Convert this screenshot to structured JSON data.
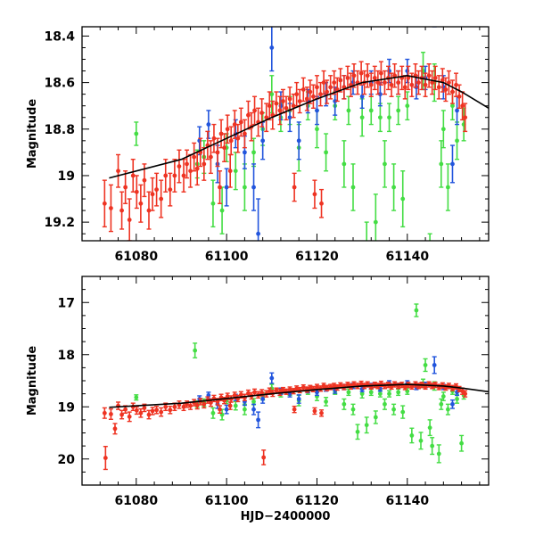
{
  "chart_data": [
    {
      "type": "scatter",
      "panel": "top",
      "title": "",
      "xlabel": "",
      "ylabel": "Magnitude",
      "xlim": [
        61068,
        61158
      ],
      "ylim": [
        19.28,
        18.36
      ],
      "y_inverted": true,
      "xticks": [
        61080,
        61100,
        61120,
        61140
      ],
      "xtick_labels": [
        "61080",
        "61100",
        "61120",
        "61140"
      ],
      "yticks": [
        18.4,
        18.6,
        18.8,
        19,
        19.2
      ],
      "ytick_labels": [
        "18.4",
        "18.6",
        "18.8",
        "19",
        "19.2"
      ],
      "grid": false,
      "legend": "none",
      "colors": {
        "series_green": "#44dd44",
        "series_blue": "#2255dd",
        "series_red": "#ee3322",
        "model_curve": "#000000"
      },
      "model_curve": {
        "name": "model",
        "points": [
          [
            61074,
            19.01
          ],
          [
            61090,
            18.93
          ],
          [
            61100,
            18.84
          ],
          [
            61110,
            18.75
          ],
          [
            61120,
            18.67
          ],
          [
            61130,
            18.6
          ],
          [
            61140,
            18.57
          ],
          [
            61148,
            18.6
          ],
          [
            61152,
            18.64
          ],
          [
            61158,
            18.71
          ]
        ]
      }
    },
    {
      "type": "scatter",
      "panel": "bottom",
      "title": "",
      "xlabel": "HJD−2400000",
      "ylabel": "Magnitude",
      "xlim": [
        61068,
        61158
      ],
      "ylim": [
        20.5,
        16.5
      ],
      "y_inverted": true,
      "xticks": [
        61080,
        61100,
        61120,
        61140
      ],
      "xtick_labels": [
        "61080",
        "61100",
        "61120",
        "61140"
      ],
      "yticks": [
        17,
        18,
        19,
        20
      ],
      "ytick_labels": [
        "17",
        "18",
        "19",
        "20"
      ],
      "grid": false,
      "legend": "none",
      "colors": {
        "series_green": "#44dd44",
        "series_blue": "#2255dd",
        "series_red": "#ee3322",
        "model_curve": "#000000"
      },
      "model_curve": {
        "name": "model",
        "points": [
          [
            61074,
            19.01
          ],
          [
            61090,
            18.93
          ],
          [
            61100,
            18.84
          ],
          [
            61110,
            18.75
          ],
          [
            61120,
            18.67
          ],
          [
            61130,
            18.6
          ],
          [
            61140,
            18.57
          ],
          [
            61148,
            18.6
          ],
          [
            61152,
            18.64
          ],
          [
            61158,
            18.71
          ]
        ]
      }
    }
  ],
  "series": [
    {
      "name": "red",
      "color": "#ee3322",
      "points": [
        [
          61073.0,
          19.12,
          0.1
        ],
        [
          61073.2,
          19.98,
          0.22
        ],
        [
          61074.4,
          19.14,
          0.1
        ],
        [
          61075.3,
          19.42,
          0.1
        ],
        [
          61076.0,
          18.98,
          0.07
        ],
        [
          61076.8,
          19.15,
          0.08
        ],
        [
          61077.6,
          19.05,
          0.07
        ],
        [
          61078.5,
          19.19,
          0.09
        ],
        [
          61079.3,
          19.0,
          0.07
        ],
        [
          61080.1,
          19.07,
          0.07
        ],
        [
          61081.0,
          19.12,
          0.08
        ],
        [
          61081.8,
          19.02,
          0.07
        ],
        [
          61082.8,
          19.15,
          0.08
        ],
        [
          61083.6,
          19.08,
          0.07
        ],
        [
          61084.5,
          19.06,
          0.07
        ],
        [
          61085.5,
          19.1,
          0.08
        ],
        [
          61086.5,
          19.0,
          0.07
        ],
        [
          61087.5,
          19.06,
          0.07
        ],
        [
          61088.5,
          19.0,
          0.07
        ],
        [
          61089.5,
          18.96,
          0.07
        ],
        [
          61090.5,
          19.0,
          0.07
        ],
        [
          61091.2,
          18.95,
          0.06
        ],
        [
          61092.0,
          18.98,
          0.07
        ],
        [
          61092.8,
          18.92,
          0.06
        ],
        [
          61093.5,
          18.97,
          0.07
        ],
        [
          61094.2,
          18.9,
          0.06
        ],
        [
          61095.0,
          18.95,
          0.07
        ],
        [
          61095.8,
          18.87,
          0.06
        ],
        [
          61096.5,
          18.92,
          0.07
        ],
        [
          61097.2,
          18.84,
          0.06
        ],
        [
          61098.0,
          18.9,
          0.06
        ],
        [
          61098.8,
          18.82,
          0.06
        ],
        [
          61099.5,
          18.88,
          0.06
        ],
        [
          61100.2,
          18.8,
          0.06
        ],
        [
          61101.0,
          18.85,
          0.06
        ],
        [
          61101.8,
          18.78,
          0.06
        ],
        [
          61102.5,
          18.84,
          0.06
        ],
        [
          61103.2,
          18.77,
          0.06
        ],
        [
          61104.0,
          18.82,
          0.06
        ],
        [
          61104.8,
          18.74,
          0.06
        ],
        [
          61105.5,
          18.79,
          0.06
        ],
        [
          61106.2,
          18.72,
          0.06
        ],
        [
          61107.0,
          18.77,
          0.06
        ],
        [
          61107.8,
          18.73,
          0.06
        ],
        [
          61108.2,
          19.97,
          0.14
        ],
        [
          61108.8,
          18.75,
          0.06
        ],
        [
          61109.5,
          18.7,
          0.06
        ],
        [
          61110.2,
          18.74,
          0.06
        ],
        [
          61111.0,
          18.69,
          0.05
        ],
        [
          61111.8,
          18.72,
          0.06
        ],
        [
          61112.5,
          18.68,
          0.05
        ],
        [
          61113.2,
          18.71,
          0.05
        ],
        [
          61114.0,
          18.67,
          0.05
        ],
        [
          61114.8,
          18.7,
          0.05
        ],
        [
          61115.5,
          18.65,
          0.05
        ],
        [
          61116.2,
          18.68,
          0.05
        ],
        [
          61117.0,
          18.63,
          0.05
        ],
        [
          61117.8,
          18.67,
          0.05
        ],
        [
          61118.5,
          18.64,
          0.05
        ],
        [
          61119.2,
          18.66,
          0.05
        ],
        [
          61120.0,
          18.62,
          0.05
        ],
        [
          61120.8,
          18.65,
          0.05
        ],
        [
          61121.5,
          18.6,
          0.05
        ],
        [
          61122.2,
          18.64,
          0.05
        ],
        [
          61123.0,
          18.62,
          0.05
        ],
        [
          61123.8,
          18.6,
          0.05
        ],
        [
          61124.5,
          18.63,
          0.05
        ],
        [
          61125.2,
          18.59,
          0.05
        ],
        [
          61126.0,
          18.62,
          0.05
        ],
        [
          61126.8,
          18.58,
          0.05
        ],
        [
          61127.5,
          18.61,
          0.05
        ],
        [
          61128.2,
          18.57,
          0.05
        ],
        [
          61129.0,
          18.6,
          0.05
        ],
        [
          61129.8,
          18.56,
          0.05
        ],
        [
          61130.5,
          18.6,
          0.05
        ],
        [
          61131.2,
          18.57,
          0.05
        ],
        [
          61132.0,
          18.61,
          0.05
        ],
        [
          61132.8,
          18.58,
          0.05
        ],
        [
          61133.5,
          18.6,
          0.05
        ],
        [
          61134.2,
          18.56,
          0.05
        ],
        [
          61135.0,
          18.6,
          0.05
        ],
        [
          61135.8,
          18.58,
          0.05
        ],
        [
          61136.5,
          18.61,
          0.05
        ],
        [
          61137.2,
          18.57,
          0.05
        ],
        [
          61138.0,
          18.6,
          0.05
        ],
        [
          61138.8,
          18.58,
          0.05
        ],
        [
          61139.5,
          18.62,
          0.05
        ],
        [
          61140.2,
          18.58,
          0.05
        ],
        [
          61141.0,
          18.61,
          0.05
        ],
        [
          61141.8,
          18.57,
          0.05
        ],
        [
          61142.5,
          18.6,
          0.05
        ],
        [
          61143.2,
          18.58,
          0.05
        ],
        [
          61144.0,
          18.61,
          0.05
        ],
        [
          61144.8,
          18.57,
          0.05
        ],
        [
          61145.5,
          18.6,
          0.05
        ],
        [
          61146.2,
          18.58,
          0.05
        ],
        [
          61147.0,
          18.62,
          0.05
        ],
        [
          61147.8,
          18.59,
          0.05
        ],
        [
          61148.5,
          18.63,
          0.05
        ],
        [
          61149.2,
          18.6,
          0.05
        ],
        [
          61150.0,
          18.64,
          0.05
        ],
        [
          61150.8,
          18.61,
          0.05
        ],
        [
          61151.5,
          18.66,
          0.05
        ],
        [
          61152.2,
          18.7,
          0.06
        ],
        [
          61152.8,
          18.75,
          0.06
        ],
        [
          61119.5,
          19.08,
          0.06
        ],
        [
          61121.0,
          19.12,
          0.06
        ],
        [
          61115.0,
          19.05,
          0.06
        ],
        [
          61098.5,
          19.05,
          0.07
        ],
        [
          61100.8,
          18.98,
          0.07
        ]
      ]
    },
    {
      "name": "green",
      "color": "#44dd44",
      "points": [
        [
          61080.0,
          18.82,
          0.05
        ],
        [
          61093.0,
          17.92,
          0.14
        ],
        [
          61093.5,
          18.95,
          0.06
        ],
        [
          61095.0,
          18.92,
          0.07
        ],
        [
          61097.0,
          19.12,
          0.1
        ],
        [
          61099.0,
          19.15,
          0.1
        ],
        [
          61100.0,
          18.88,
          0.06
        ],
        [
          61102.0,
          18.98,
          0.08
        ],
        [
          61104.0,
          19.05,
          0.1
        ],
        [
          61106.0,
          18.9,
          0.06
        ],
        [
          61108.0,
          18.8,
          0.07
        ],
        [
          61110.0,
          18.65,
          0.08
        ],
        [
          61112.0,
          18.75,
          0.06
        ],
        [
          61114.0,
          18.72,
          0.06
        ],
        [
          61116.0,
          18.88,
          0.1
        ],
        [
          61118.0,
          18.7,
          0.06
        ],
        [
          61120.0,
          18.8,
          0.08
        ],
        [
          61122.0,
          18.9,
          0.08
        ],
        [
          61124.0,
          18.7,
          0.06
        ],
        [
          61126.0,
          18.95,
          0.1
        ],
        [
          61127.0,
          18.72,
          0.06
        ],
        [
          61128.0,
          19.05,
          0.1
        ],
        [
          61129.0,
          19.48,
          0.14
        ],
        [
          61130.0,
          18.75,
          0.08
        ],
        [
          61131.0,
          19.35,
          0.15
        ],
        [
          61132.0,
          18.72,
          0.06
        ],
        [
          61133.0,
          19.2,
          0.12
        ],
        [
          61134.0,
          18.75,
          0.06
        ],
        [
          61135.0,
          18.95,
          0.1
        ],
        [
          61136.0,
          18.75,
          0.06
        ],
        [
          61137.0,
          19.05,
          0.1
        ],
        [
          61138.0,
          18.72,
          0.06
        ],
        [
          61139.0,
          19.1,
          0.12
        ],
        [
          61140.0,
          18.7,
          0.06
        ],
        [
          61141.0,
          19.55,
          0.14
        ],
        [
          61142.0,
          17.15,
          0.12
        ],
        [
          61143.0,
          19.65,
          0.16
        ],
        [
          61143.5,
          18.55,
          0.08
        ],
        [
          61144.0,
          18.2,
          0.12
        ],
        [
          61145.0,
          19.4,
          0.15
        ],
        [
          61145.5,
          19.75,
          0.16
        ],
        [
          61146.0,
          18.6,
          0.08
        ],
        [
          61147.0,
          19.9,
          0.17
        ],
        [
          61147.5,
          18.95,
          0.1
        ],
        [
          61148.0,
          18.8,
          0.08
        ],
        [
          61149.0,
          19.05,
          0.1
        ],
        [
          61150.0,
          18.7,
          0.06
        ],
        [
          61151.0,
          18.85,
          0.08
        ],
        [
          61152.0,
          19.7,
          0.15
        ],
        [
          61152.5,
          18.78,
          0.07
        ]
      ]
    },
    {
      "name": "blue",
      "color": "#2255dd",
      "points": [
        [
          61094.0,
          18.85,
          0.06
        ],
        [
          61096.0,
          18.78,
          0.06
        ],
        [
          61098.0,
          18.95,
          0.08
        ],
        [
          61100.0,
          19.05,
          0.08
        ],
        [
          61102.0,
          18.82,
          0.06
        ],
        [
          61104.0,
          18.9,
          0.07
        ],
        [
          61106.0,
          19.05,
          0.1
        ],
        [
          61107.0,
          19.25,
          0.15
        ],
        [
          61108.0,
          18.85,
          0.08
        ],
        [
          61110.0,
          18.45,
          0.1
        ],
        [
          61112.0,
          18.7,
          0.06
        ],
        [
          61114.0,
          18.75,
          0.06
        ],
        [
          61116.0,
          18.85,
          0.08
        ],
        [
          61118.0,
          18.68,
          0.05
        ],
        [
          61120.0,
          18.72,
          0.06
        ],
        [
          61122.0,
          18.65,
          0.05
        ],
        [
          61124.0,
          18.68,
          0.06
        ],
        [
          61126.0,
          18.62,
          0.05
        ],
        [
          61128.0,
          18.6,
          0.05
        ],
        [
          61130.0,
          18.66,
          0.05
        ],
        [
          61132.0,
          18.6,
          0.05
        ],
        [
          61134.0,
          18.65,
          0.05
        ],
        [
          61136.0,
          18.55,
          0.05
        ],
        [
          61138.0,
          18.6,
          0.05
        ],
        [
          61140.0,
          18.55,
          0.05
        ],
        [
          61142.0,
          18.62,
          0.05
        ],
        [
          61144.0,
          18.58,
          0.05
        ],
        [
          61146.0,
          18.2,
          0.16
        ],
        [
          61148.0,
          18.62,
          0.05
        ],
        [
          61150.0,
          18.95,
          0.08
        ],
        [
          61151.0,
          18.72,
          0.06
        ]
      ]
    }
  ]
}
